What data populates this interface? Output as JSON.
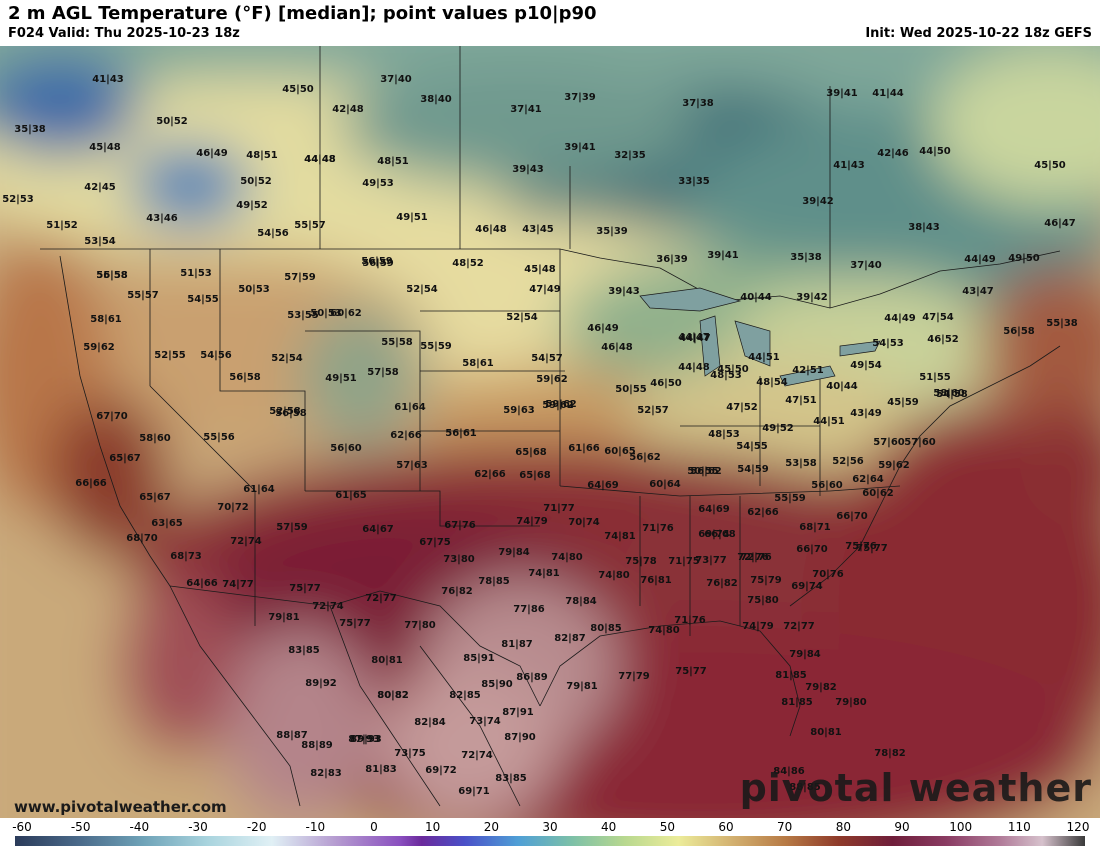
{
  "header": {
    "title": "2 m AGL Temperature (°F) [median]; point values p10|p90",
    "valid": "F024 Valid: Thu 2025-10-23 18z",
    "init": "Init: Wed 2025-10-22 18z GEFS"
  },
  "footer": {
    "url": "www.pivotalweather.com",
    "brand": "pivotal weather"
  },
  "scale": {
    "labels": [
      "-60",
      "-50",
      "-40",
      "-30",
      "-20",
      "-10",
      "0",
      "10",
      "20",
      "30",
      "40",
      "50",
      "60",
      "70",
      "80",
      "90",
      "100",
      "110",
      "120"
    ]
  },
  "point_values": [
    "41|43",
    "45|50",
    "37|40",
    "38|40",
    "42|48",
    "37|41",
    "37|39",
    "37|38",
    "39|41",
    "41|44",
    "35|38",
    "50|52",
    "44|48",
    "39|41",
    "32|35",
    "42|46",
    "44|50",
    "45|48",
    "46|49",
    "48|51",
    "44|48",
    "48|51",
    "39|43",
    "33|35",
    "41|43",
    "45|50",
    "42|45",
    "50|52",
    "49|53",
    "39|42",
    "52|53",
    "49|52",
    "49|51",
    "38|43",
    "46|47",
    "51|52",
    "43|46",
    "55|57",
    "46|48",
    "43|45",
    "35|39",
    "53|54",
    "54|56",
    "56|59",
    "48|52",
    "45|48",
    "36|39",
    "39|41",
    "35|38",
    "37|40",
    "44|49",
    "49|50",
    "56|58",
    "51|53",
    "57|59",
    "52|54",
    "50|53",
    "47|49",
    "39|43",
    "43|47",
    "55|57",
    "54|55",
    "50|53",
    "40|44",
    "39|42",
    "44|49",
    "47|54",
    "55|58",
    "58|61",
    "53|55",
    "60|62",
    "52|54",
    "46|49",
    "44|47",
    "54|53",
    "46|52",
    "56|58",
    "59|62",
    "55|58",
    "55|59",
    "46|48",
    "48|53",
    "55|38",
    "52|55",
    "54|56",
    "52|54",
    "49|51",
    "57|58",
    "58|61",
    "54|57",
    "44|47",
    "44|51",
    "49|54",
    "51|55",
    "59|62",
    "56|58",
    "59|62",
    "44|48",
    "45|50",
    "42|51",
    "58|60",
    "56|58",
    "61|64",
    "56|59",
    "46|50",
    "48|54",
    "40|44",
    "67|70",
    "59|63",
    "59|62",
    "50|55",
    "47|51",
    "54|58",
    "62|66",
    "56|61",
    "52|57",
    "47|52",
    "43|49",
    "45|59",
    "58|60",
    "55|56",
    "52|58",
    "48|53",
    "44|51",
    "57|60",
    "65|67",
    "56|60",
    "65|68",
    "61|66",
    "60|65",
    "49|52",
    "54|55",
    "57|60",
    "66|66",
    "57|63",
    "62|66",
    "65|68",
    "56|62",
    "50|55",
    "54|59",
    "53|58",
    "52|56",
    "59|62",
    "65|67",
    "61|64",
    "61|65",
    "64|69",
    "60|64",
    "56|62",
    "56|60",
    "62|64",
    "70|72",
    "63|65",
    "71|77",
    "55|59",
    "60|62",
    "68|70",
    "57|59",
    "64|67",
    "74|79",
    "70|74",
    "64|69",
    "62|66",
    "66|70",
    "68|71",
    "72|74",
    "67|76",
    "71|76",
    "66|68",
    "75|76",
    "67|75",
    "74|81",
    "69|74",
    "72|76",
    "66|70",
    "75|77",
    "68|73",
    "79|84",
    "74|80",
    "71|75",
    "73|77",
    "72|76",
    "64|66",
    "74|77",
    "73|80",
    "74|81",
    "75|78",
    "76|82",
    "75|79",
    "70|76",
    "75|77",
    "78|85",
    "74|80",
    "76|81",
    "69|74",
    "72|74",
    "72|77",
    "76|82",
    "78|84",
    "75|80",
    "79|81",
    "75|77",
    "77|80",
    "77|86",
    "80|85",
    "74|80",
    "71|76",
    "74|79",
    "72|77",
    "83|85",
    "80|81",
    "82|87",
    "79|84",
    "81|87",
    "81|85",
    "89|92",
    "85|91",
    "80|82",
    "86|89",
    "79|81",
    "77|79",
    "75|77",
    "79|82",
    "82|85",
    "85|90",
    "81|85",
    "79|80",
    "87|91",
    "82|84",
    "73|74",
    "87|93",
    "80|82",
    "88|87",
    "89|93",
    "73|75",
    "87|90",
    "80|81",
    "88|89",
    "72|74",
    "78|82",
    "82|83",
    "81|83",
    "69|72",
    "83|85",
    "69|71",
    "84|86",
    "88|85"
  ]
}
